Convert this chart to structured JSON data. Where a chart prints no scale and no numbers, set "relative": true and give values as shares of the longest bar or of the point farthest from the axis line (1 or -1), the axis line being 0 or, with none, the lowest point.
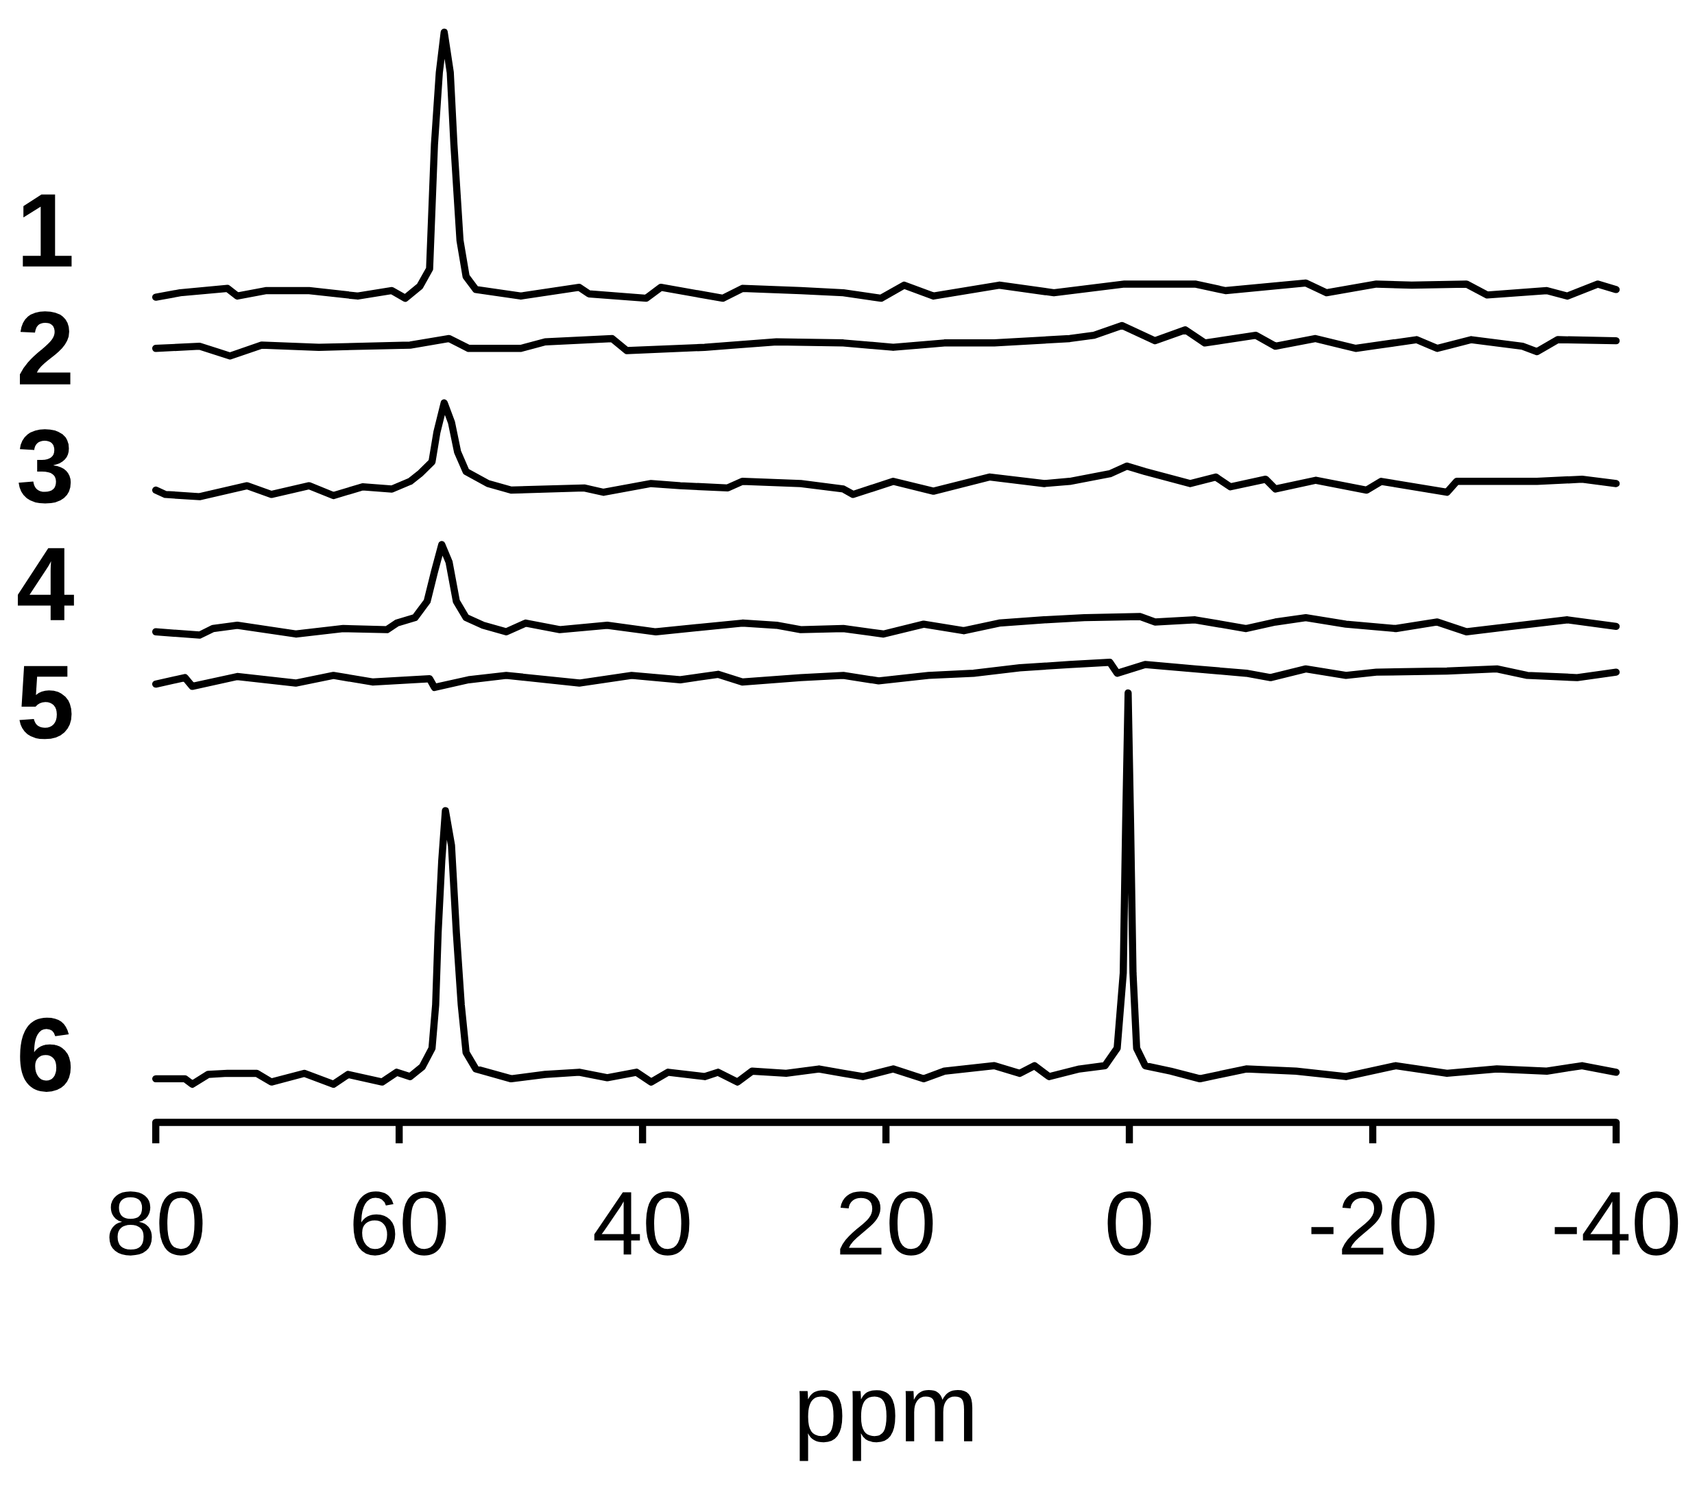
{
  "chart_data": {
    "type": "line",
    "xlabel": "ppm",
    "xlim": [
      80,
      -40
    ],
    "xticks": [
      80,
      60,
      40,
      20,
      0,
      -20,
      -40
    ],
    "relative": true,
    "series": [
      {
        "name": "1",
        "color": "#000000",
        "x": [
          80.0,
          78.0,
          74.1,
          73.3,
          70.9,
          67.4,
          63.4,
          60.6,
          59.5,
          58.3,
          57.5,
          57.1,
          56.7,
          56.3,
          55.8,
          55.5,
          55.0,
          54.5,
          53.7,
          50.0,
          45.2,
          44.4,
          39.7,
          38.5,
          33.4,
          31.8,
          27.0,
          23.5,
          20.4,
          18.5,
          16.1,
          10.7,
          6.2,
          0.4,
          -5.4,
          -7.9,
          -14.5,
          -16.2,
          -20.3,
          -23.2,
          -27.7,
          -29.4,
          -34.3,
          -36.0,
          -38.5,
          -40.0
        ],
        "values": [
          0.757,
          0.761,
          0.765,
          0.758,
          0.763,
          0.763,
          0.758,
          0.763,
          0.756,
          0.767,
          0.783,
          0.897,
          0.963,
          1,
          0.963,
          0.897,
          0.809,
          0.776,
          0.764,
          0.758,
          0.766,
          0.76,
          0.756,
          0.766,
          0.756,
          0.765,
          0.763,
          0.761,
          0.756,
          0.768,
          0.758,
          0.768,
          0.761,
          0.769,
          0.769,
          0.763,
          0.77,
          0.761,
          0.769,
          0.768,
          0.769,
          0.759,
          0.763,
          0.758,
          0.769,
          0.764
        ]
      },
      {
        "name": "2",
        "color": "#000000",
        "x": [
          80.0,
          76.4,
          73.9,
          71.3,
          66.6,
          59.1,
          55.9,
          54.3,
          50.0,
          48.0,
          42.5,
          41.3,
          34.9,
          29.0,
          23.5,
          19.4,
          15.2,
          11.1,
          4.9,
          2.9,
          0.6,
          -2.1,
          -4.6,
          -6.2,
          -10.4,
          -12.0,
          -15.3,
          -18.6,
          -23.6,
          -25.3,
          -28.1,
          -32.3,
          -33.5,
          -35.2,
          -40.0
        ],
        "values": [
          0.71,
          0.712,
          0.703,
          0.713,
          0.711,
          0.713,
          0.719,
          0.71,
          0.71,
          0.716,
          0.719,
          0.708,
          0.711,
          0.716,
          0.715,
          0.711,
          0.715,
          0.715,
          0.719,
          0.722,
          0.731,
          0.717,
          0.727,
          0.715,
          0.722,
          0.712,
          0.719,
          0.71,
          0.718,
          0.71,
          0.718,
          0.712,
          0.707,
          0.718,
          0.717
        ]
      },
      {
        "name": "3",
        "color": "#000000",
        "x": [
          80.0,
          79.2,
          76.4,
          72.5,
          70.5,
          67.4,
          65.4,
          63.0,
          60.6,
          59.1,
          58.3,
          57.3,
          56.9,
          56.3,
          55.7,
          55.2,
          54.5,
          52.7,
          50.8,
          44.8,
          43.2,
          39.3,
          36.9,
          33.0,
          31.8,
          27.0,
          23.5,
          22.7,
          19.4,
          16.1,
          11.5,
          7.0,
          4.9,
          1.6,
          0.2,
          -1.3,
          -5.0,
          -7.1,
          -8.3,
          -11.2,
          -12.0,
          -15.3,
          -19.5,
          -20.7,
          -26.1,
          -26.9,
          -33.5,
          -37.2,
          -40.0
        ],
        "values": [
          0.58,
          0.576,
          0.574,
          0.584,
          0.576,
          0.584,
          0.575,
          0.583,
          0.581,
          0.588,
          0.595,
          0.606,
          0.633,
          0.66,
          0.642,
          0.615,
          0.597,
          0.586,
          0.58,
          0.582,
          0.578,
          0.586,
          0.584,
          0.582,
          0.588,
          0.586,
          0.581,
          0.576,
          0.588,
          0.579,
          0.592,
          0.586,
          0.588,
          0.595,
          0.602,
          0.597,
          0.586,
          0.592,
          0.583,
          0.59,
          0.581,
          0.589,
          0.58,
          0.588,
          0.578,
          0.588,
          0.588,
          0.59,
          0.586
        ]
      },
      {
        "name": "4",
        "color": "#000000",
        "x": [
          80.0,
          76.4,
          75.3,
          73.3,
          68.5,
          64.6,
          61.0,
          60.2,
          58.7,
          57.7,
          57.1,
          56.5,
          55.9,
          55.3,
          54.5,
          53.1,
          51.2,
          49.6,
          46.8,
          42.9,
          38.9,
          31.8,
          29.0,
          27.0,
          23.5,
          20.2,
          16.9,
          13.6,
          10.7,
          7.0,
          3.7,
          -0.9,
          -2.1,
          -5.4,
          -9.6,
          -12.0,
          -14.5,
          -17.8,
          -21.9,
          -25.3,
          -27.7,
          -31.4,
          -36.0,
          -40.0
        ],
        "values": [
          0.45,
          0.447,
          0.453,
          0.456,
          0.448,
          0.453,
          0.452,
          0.458,
          0.463,
          0.478,
          0.505,
          0.53,
          0.514,
          0.478,
          0.463,
          0.456,
          0.45,
          0.458,
          0.452,
          0.456,
          0.45,
          0.458,
          0.456,
          0.452,
          0.453,
          0.448,
          0.457,
          0.451,
          0.458,
          0.461,
          0.463,
          0.464,
          0.459,
          0.461,
          0.453,
          0.459,
          0.463,
          0.457,
          0.453,
          0.459,
          0.45,
          0.455,
          0.461,
          0.455
        ]
      },
      {
        "name": "5",
        "color": "#000000",
        "x": [
          80.0,
          77.6,
          77.0,
          73.3,
          68.5,
          65.4,
          62.2,
          57.5,
          57.1,
          54.3,
          51.2,
          45.2,
          40.9,
          36.9,
          33.8,
          31.8,
          27.0,
          23.5,
          20.6,
          16.5,
          12.8,
          9.0,
          4.9,
          1.6,
          1.0,
          -1.3,
          -5.4,
          -9.6,
          -11.6,
          -14.5,
          -17.8,
          -20.3,
          -26.1,
          -30.2,
          -32.7,
          -36.8,
          -40.0
        ],
        "values": [
          0.402,
          0.408,
          0.4,
          0.409,
          0.403,
          0.41,
          0.404,
          0.407,
          0.399,
          0.406,
          0.41,
          0.403,
          0.41,
          0.406,
          0.411,
          0.404,
          0.408,
          0.41,
          0.405,
          0.41,
          0.412,
          0.417,
          0.42,
          0.422,
          0.412,
          0.42,
          0.416,
          0.412,
          0.408,
          0.416,
          0.41,
          0.413,
          0.414,
          0.416,
          0.41,
          0.408,
          0.413
        ]
      },
      {
        "name": "6",
        "color": "#000000",
        "x": [
          80.0,
          77.6,
          77.0,
          75.7,
          74.1,
          71.7,
          70.5,
          67.8,
          65.4,
          64.2,
          61.4,
          60.2,
          59.1,
          58.1,
          57.3,
          57.0,
          56.8,
          56.5,
          56.2,
          55.7,
          55.3,
          54.9,
          54.5,
          53.7,
          50.8,
          48.0,
          45.2,
          42.9,
          40.5,
          39.3,
          37.9,
          34.9,
          33.8,
          32.2,
          31.0,
          28.2,
          25.5,
          23.5,
          21.9,
          19.4,
          16.9,
          15.2,
          11.1,
          9.0,
          7.8,
          6.6,
          4.1,
          2.0,
          1.0,
          0.5,
          0.3,
          0.1,
          -0.1,
          -0.3,
          -0.6,
          -1.3,
          -3.4,
          -5.8,
          -9.6,
          -13.7,
          -17.8,
          -21.9,
          -26.1,
          -30.2,
          -34.3,
          -37.2,
          -40.0
        ],
        "values": [
          0.04,
          0.04,
          0.035,
          0.044,
          0.045,
          0.045,
          0.037,
          0.045,
          0.035,
          0.044,
          0.037,
          0.046,
          0.042,
          0.051,
          0.068,
          0.108,
          0.174,
          0.24,
          0.286,
          0.254,
          0.174,
          0.108,
          0.064,
          0.049,
          0.04,
          0.044,
          0.046,
          0.041,
          0.046,
          0.037,
          0.046,
          0.042,
          0.046,
          0.037,
          0.047,
          0.045,
          0.049,
          0.045,
          0.042,
          0.049,
          0.04,
          0.047,
          0.052,
          0.045,
          0.052,
          0.042,
          0.049,
          0.052,
          0.068,
          0.137,
          0.275,
          0.394,
          0.275,
          0.137,
          0.068,
          0.052,
          0.047,
          0.04,
          0.049,
          0.047,
          0.042,
          0.052,
          0.045,
          0.049,
          0.047,
          0.052,
          0.046
        ]
      }
    ]
  }
}
